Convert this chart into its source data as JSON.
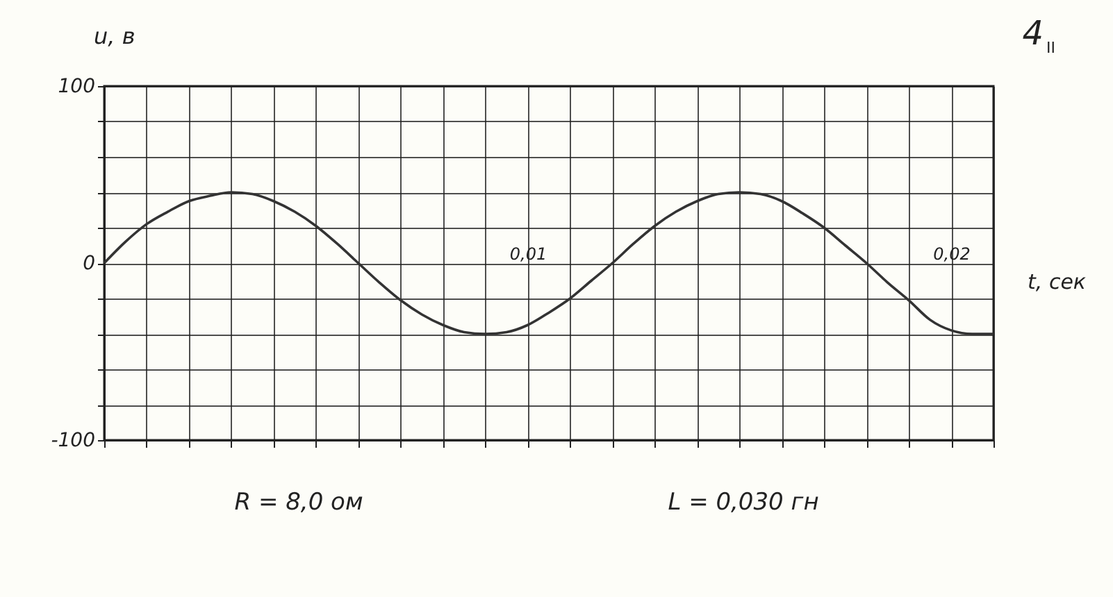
{
  "chart_data": {
    "type": "line",
    "xlabel": "t, сек",
    "ylabel": "u, в",
    "x": [
      0,
      0.0005,
      0.001,
      0.0015,
      0.002,
      0.0025,
      0.003,
      0.0035,
      0.004,
      0.0045,
      0.005,
      0.0055,
      0.006,
      0.0065,
      0.007,
      0.0075,
      0.008,
      0.0085,
      0.009,
      0.0095,
      0.01,
      0.0105,
      0.011,
      0.0115,
      0.012,
      0.0125,
      0.013,
      0.0135,
      0.014,
      0.0145,
      0.015,
      0.0155,
      0.016,
      0.0165,
      0.017,
      0.0175,
      0.018,
      0.0185,
      0.019,
      0.0195,
      0.02,
      0.0205,
      0.021
    ],
    "series": [
      {
        "color": "#333333",
        "values": [
          0,
          12,
          22,
          29,
          35,
          38,
          40,
          39,
          35,
          29,
          21,
          11,
          0,
          -11,
          -21,
          -29,
          -35,
          -39,
          -40,
          -39,
          -35,
          -28,
          -20,
          -10,
          0,
          11,
          21,
          29,
          35,
          39,
          40,
          39,
          35,
          28,
          20,
          10,
          0,
          -11,
          -21,
          -32,
          -38,
          -40,
          -40
        ]
      }
    ],
    "xlim": [
      0,
      0.021
    ],
    "xticks": [
      {
        "value": 0,
        "label": null
      },
      {
        "value": 0.001,
        "label": null
      },
      {
        "value": 0.002,
        "label": null
      },
      {
        "value": 0.003,
        "label": null
      },
      {
        "value": 0.004,
        "label": null
      },
      {
        "value": 0.005,
        "label": null
      },
      {
        "value": 0.006,
        "label": null
      },
      {
        "value": 0.007,
        "label": null
      },
      {
        "value": 0.008,
        "label": null
      },
      {
        "value": 0.009,
        "label": null
      },
      {
        "value": 0.01,
        "label": "0,01"
      },
      {
        "value": 0.011,
        "label": null
      },
      {
        "value": 0.012,
        "label": null
      },
      {
        "value": 0.013,
        "label": null
      },
      {
        "value": 0.014,
        "label": null
      },
      {
        "value": 0.015,
        "label": null
      },
      {
        "value": 0.016,
        "label": null
      },
      {
        "value": 0.017,
        "label": null
      },
      {
        "value": 0.018,
        "label": null
      },
      {
        "value": 0.019,
        "label": null
      },
      {
        "value": 0.02,
        "label": "0,02"
      },
      {
        "value": 0.021,
        "label": null
      }
    ],
    "ylim": [
      -100,
      100
    ],
    "yticks": [
      -100,
      {
        "value": -80,
        "label": null
      },
      {
        "value": -60,
        "label": null
      },
      {
        "value": -40,
        "label": null
      },
      {
        "value": -20,
        "label": null
      },
      0,
      {
        "value": 20,
        "label": null
      },
      {
        "value": 40,
        "label": null
      },
      {
        "value": 60,
        "label": null
      },
      {
        "value": 80,
        "label": null
      },
      100
    ],
    "grid": true,
    "marker": "none",
    "line_style": "solid",
    "annotations": [
      "4$_{II}$",
      "R = 8,0 ом",
      "L = 0,030 гн"
    ]
  }
}
